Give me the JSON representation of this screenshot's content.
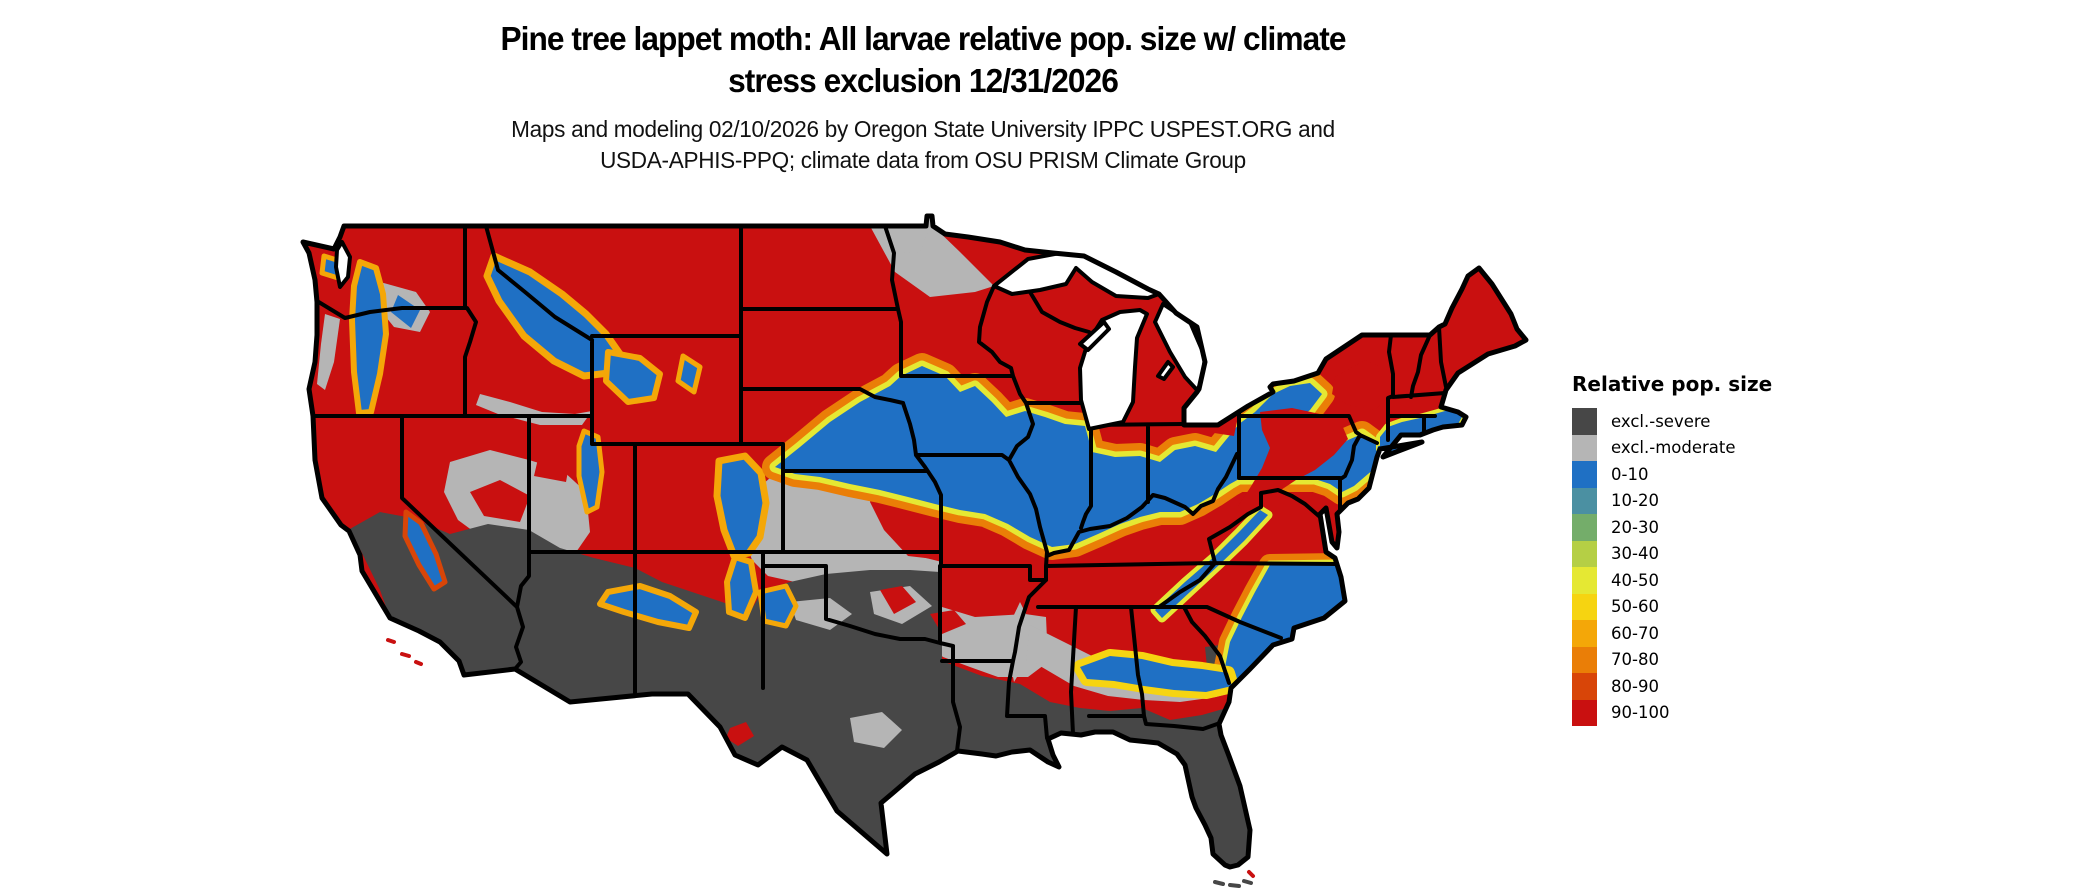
{
  "title": {
    "line1": "Pine tree lappet moth: All larvae relative pop. size w/ climate",
    "line2": "stress exclusion 12/31/2026"
  },
  "subtitle": {
    "line1": "Maps and modeling 02/10/2026 by Oregon State University IPPC USPEST.ORG and",
    "line2": "USDA-APHIS-PPQ; climate data from OSU PRISM Climate Group"
  },
  "legend": {
    "title": "Relative pop. size",
    "items": [
      {
        "label": "excl.-severe",
        "color": "#474747"
      },
      {
        "label": "excl.-moderate",
        "color": "#b5b5b5"
      },
      {
        "label": "0-10",
        "color": "#1f70c4"
      },
      {
        "label": "10-20",
        "color": "#4b90a2"
      },
      {
        "label": "20-30",
        "color": "#74ad6a"
      },
      {
        "label": "30-40",
        "color": "#b5cf45"
      },
      {
        "label": "40-50",
        "color": "#e5e833"
      },
      {
        "label": "50-60",
        "color": "#f6d411"
      },
      {
        "label": "60-70",
        "color": "#f4a708"
      },
      {
        "label": "70-80",
        "color": "#ea7e07"
      },
      {
        "label": "80-90",
        "color": "#d84508"
      },
      {
        "label": "90-100",
        "color": "#c91010"
      }
    ]
  },
  "map": {
    "description": "Continental US raster map of pine tree lappet moth relative population size with climate stress exclusion",
    "border_color": "#000000",
    "water_color": "#ffffff",
    "class_of_north": "90-100",
    "class_of_central_band": "0-10",
    "class_of_gulf_south": "excl.-severe",
    "class_of_transition_band": "excl.-moderate"
  }
}
